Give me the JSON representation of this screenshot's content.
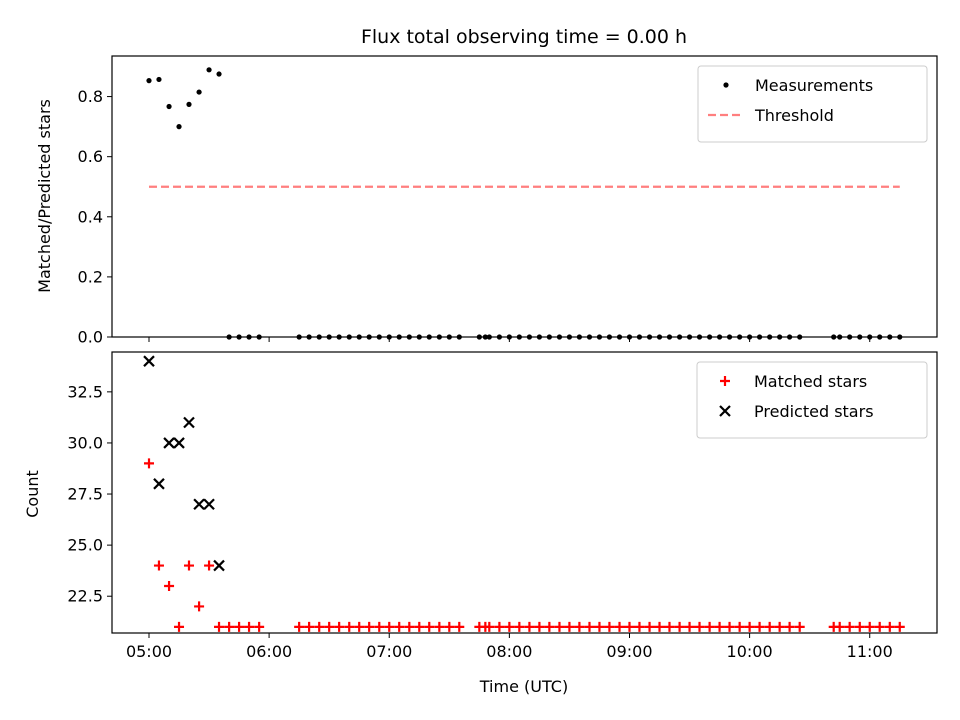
{
  "chart_data": [
    {
      "type": "scatter",
      "title": "Flux total observing time = 0.00 h",
      "xlabel": "",
      "ylabel": "Matched/Predicted stars",
      "xlim": [
        4.692,
        11.56
      ],
      "ylim": [
        0.0,
        0.935
      ],
      "yticks": [
        0.0,
        0.2,
        0.4,
        0.6,
        0.8
      ],
      "ytick_labels": [
        "0.0",
        "0.2",
        "0.4",
        "0.6",
        "0.8"
      ],
      "legend_position": "top-right",
      "grid": false,
      "series": [
        {
          "name": "Measurements",
          "marker": "dot",
          "color": "#000000",
          "x": [
            5.0,
            5.083,
            5.167,
            5.25,
            5.333,
            5.417,
            5.5,
            5.583,
            5.667,
            5.75,
            5.833,
            5.917,
            6.25,
            6.333,
            6.417,
            6.5,
            6.583,
            6.667,
            6.75,
            6.833,
            6.917,
            7.0,
            7.083,
            7.167,
            7.25,
            7.333,
            7.417,
            7.5,
            7.583,
            7.75,
            7.8,
            7.833,
            7.917,
            8.0,
            8.083,
            8.167,
            8.25,
            8.333,
            8.417,
            8.5,
            8.583,
            8.667,
            8.75,
            8.833,
            8.917,
            9.0,
            9.083,
            9.167,
            9.25,
            9.333,
            9.417,
            9.5,
            9.583,
            9.667,
            9.75,
            9.833,
            9.917,
            10.0,
            10.083,
            10.167,
            10.25,
            10.333,
            10.417,
            10.7,
            10.75,
            10.833,
            10.917,
            11.0,
            11.083,
            11.167,
            11.25
          ],
          "y": [
            0.853,
            0.857,
            0.767,
            0.7,
            0.774,
            0.815,
            0.889,
            0.875,
            0,
            0,
            0,
            0,
            0,
            0,
            0,
            0,
            0,
            0,
            0,
            0,
            0,
            0,
            0,
            0,
            0,
            0,
            0,
            0,
            0,
            0,
            0,
            0,
            0,
            0,
            0,
            0,
            0,
            0,
            0,
            0,
            0,
            0,
            0,
            0,
            0,
            0,
            0,
            0,
            0,
            0,
            0,
            0,
            0,
            0,
            0,
            0,
            0,
            0,
            0,
            0,
            0,
            0,
            0,
            0,
            0,
            0,
            0,
            0,
            0,
            0,
            0
          ]
        },
        {
          "name": "Threshold",
          "style": "dashed-line",
          "color": "#ff7f7f",
          "x": [
            5.0,
            11.25
          ],
          "y": [
            0.5,
            0.5
          ]
        }
      ]
    },
    {
      "type": "scatter",
      "title": "",
      "xlabel": "Time (UTC)",
      "ylabel": "Count",
      "xlim": [
        4.692,
        11.56
      ],
      "ylim": [
        20.7,
        34.45
      ],
      "yticks": [
        22.5,
        25.0,
        27.5,
        30.0,
        32.5
      ],
      "ytick_labels": [
        "22.5",
        "25.0",
        "27.5",
        "30.0",
        "32.5"
      ],
      "xticks": [
        5,
        6,
        7,
        8,
        9,
        10,
        11
      ],
      "xtick_labels": [
        "05:00",
        "06:00",
        "07:00",
        "08:00",
        "09:00",
        "10:00",
        "11:00"
      ],
      "legend_position": "top-right",
      "grid": false,
      "series": [
        {
          "name": "Matched stars",
          "marker": "plus",
          "color": "#ff0000",
          "x": [
            5.0,
            5.083,
            5.167,
            5.25,
            5.333,
            5.417,
            5.5,
            5.583,
            5.667,
            5.75,
            5.833,
            5.917,
            6.25,
            6.333,
            6.417,
            6.5,
            6.583,
            6.667,
            6.75,
            6.833,
            6.917,
            7.0,
            7.083,
            7.167,
            7.25,
            7.333,
            7.417,
            7.5,
            7.583,
            7.75,
            7.8,
            7.833,
            7.917,
            8.0,
            8.083,
            8.167,
            8.25,
            8.333,
            8.417,
            8.5,
            8.583,
            8.667,
            8.75,
            8.833,
            8.917,
            9.0,
            9.083,
            9.167,
            9.25,
            9.333,
            9.417,
            9.5,
            9.583,
            9.667,
            9.75,
            9.833,
            9.917,
            10.0,
            10.083,
            10.167,
            10.25,
            10.333,
            10.417,
            10.7,
            10.75,
            10.833,
            10.917,
            11.0,
            11.083,
            11.167,
            11.25
          ],
          "y": [
            29,
            24,
            23,
            21,
            24,
            22,
            24,
            21,
            21,
            21,
            21,
            21,
            21,
            21,
            21,
            21,
            21,
            21,
            21,
            21,
            21,
            21,
            21,
            21,
            21,
            21,
            21,
            21,
            21,
            21,
            21,
            21,
            21,
            21,
            21,
            21,
            21,
            21,
            21,
            21,
            21,
            21,
            21,
            21,
            21,
            21,
            21,
            21,
            21,
            21,
            21,
            21,
            21,
            21,
            21,
            21,
            21,
            21,
            21,
            21,
            21,
            21,
            21,
            21,
            21,
            21,
            21,
            21,
            21,
            21,
            21
          ]
        },
        {
          "name": "Predicted stars",
          "marker": "x",
          "color": "#000000",
          "x": [
            5.0,
            5.083,
            5.167,
            5.25,
            5.333,
            5.417,
            5.5,
            5.583
          ],
          "y": [
            34,
            28,
            30,
            30,
            31,
            27,
            27,
            24
          ]
        }
      ]
    }
  ]
}
